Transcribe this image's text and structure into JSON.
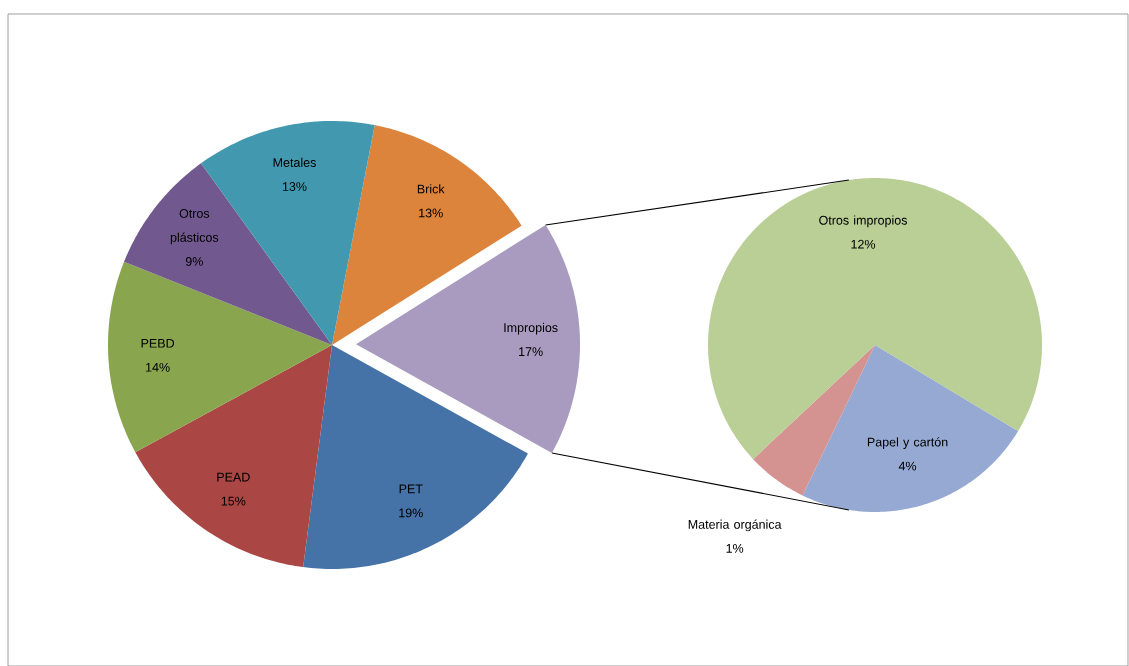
{
  "chart_data": [
    {
      "type": "pie",
      "categories": [
        "Brick",
        "Impropios",
        "PET",
        "PEAD",
        "PEBD",
        "Otros plásticos",
        "Metales"
      ],
      "values": [
        13,
        17,
        19,
        15,
        14,
        9,
        13
      ],
      "value_labels": [
        "13%",
        "17%",
        "19%",
        "15%",
        "14%",
        "9%",
        "13%"
      ],
      "colors": [
        "#dd843c",
        "#a99bc0",
        "#4572a7",
        "#aa4643",
        "#89a54e",
        "#71588f",
        "#4198af"
      ]
    },
    {
      "type": "pie",
      "categories": [
        "Papel y cartón",
        "Materia orgánica",
        "Otros impropios"
      ],
      "values": [
        4,
        1,
        12
      ],
      "value_labels": [
        "4%",
        "1%",
        "12%"
      ],
      "colors": [
        "#95a9d2",
        "#d49391",
        "#b9cf96"
      ]
    }
  ]
}
